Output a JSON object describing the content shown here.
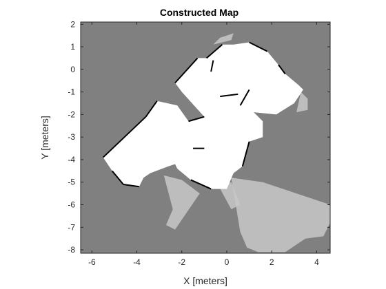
{
  "chart_data": {
    "type": "heatmap",
    "title": "Constructed Map",
    "xlabel": "X [meters]",
    "ylabel": "Y [meters]",
    "xlim": [
      -6.5,
      4.6
    ],
    "ylim": [
      -8.15,
      2.1
    ],
    "xticks": [
      -6,
      -4,
      -2,
      0,
      2,
      4
    ],
    "yticks": [
      -8,
      -7,
      -6,
      -5,
      -4,
      -3,
      -2,
      -1,
      0,
      1,
      2
    ],
    "grid": false,
    "colors": {
      "unknown": "#808080",
      "free": "#ffffff",
      "occupied": "#000000",
      "partial": "#c8c8c8",
      "axis": "#262626"
    },
    "free_regions": [
      [
        [
          -5.5,
          -3.9
        ],
        [
          -3.6,
          -2.1
        ],
        [
          -3.1,
          -1.4
        ],
        [
          -2.2,
          -1.6
        ],
        [
          -1.7,
          -2.3
        ],
        [
          -1.0,
          -2.1
        ],
        [
          -2.0,
          -1.0
        ],
        [
          -2.3,
          -0.6
        ],
        [
          -1.3,
          0.5
        ],
        [
          -0.9,
          0.5
        ],
        [
          -0.2,
          1.1
        ],
        [
          0.3,
          1.1
        ],
        [
          1.0,
          1.2
        ],
        [
          1.8,
          0.8
        ],
        [
          2.3,
          0.2
        ],
        [
          2.6,
          -0.2
        ],
        [
          3.2,
          -0.7
        ],
        [
          3.4,
          -0.9
        ],
        [
          3.0,
          -1.5
        ],
        [
          2.2,
          -2.0
        ],
        [
          1.2,
          -1.9
        ],
        [
          1.6,
          -2.3
        ],
        [
          1.6,
          -3.0
        ],
        [
          1.0,
          -3.2
        ],
        [
          0.7,
          -4.3
        ],
        [
          0.3,
          -4.6
        ],
        [
          0.0,
          -5.3
        ],
        [
          -0.7,
          -5.3
        ],
        [
          -1.6,
          -4.9
        ],
        [
          -2.2,
          -4.4
        ],
        [
          -2.3,
          -4.2
        ],
        [
          -2.6,
          -4.3
        ],
        [
          -3.4,
          -4.6
        ],
        [
          -3.7,
          -4.8
        ],
        [
          -3.9,
          -5.2
        ],
        [
          -4.6,
          -5.1
        ],
        [
          -5.1,
          -4.5
        ]
      ],
      [
        [
          -1.2,
          -2.3
        ],
        [
          -0.5,
          -2.3
        ],
        [
          -0.4,
          -3.0
        ],
        [
          -1.2,
          -3.3
        ]
      ]
    ],
    "partial_regions": [
      [
        [
          -2.8,
          -4.7
        ],
        [
          -2.0,
          -4.9
        ],
        [
          -1.2,
          -5.5
        ],
        [
          -2.3,
          -7.1
        ],
        [
          -2.7,
          -6.9
        ],
        [
          -2.4,
          -6.2
        ]
      ],
      [
        [
          0.2,
          -4.8
        ],
        [
          1.6,
          -5.0
        ],
        [
          4.6,
          -6.0
        ],
        [
          4.6,
          -6.8
        ],
        [
          4.3,
          -7.4
        ],
        [
          3.5,
          -7.5
        ],
        [
          2.6,
          -8.1
        ],
        [
          1.4,
          -8.1
        ],
        [
          0.9,
          -7.9
        ],
        [
          0.6,
          -7.2
        ]
      ],
      [
        [
          -0.4,
          -5.1
        ],
        [
          0.2,
          -5.0
        ],
        [
          0.6,
          -6.0
        ],
        [
          0.2,
          -6.2
        ]
      ],
      [
        [
          3.3,
          -1.0
        ],
        [
          3.6,
          -1.3
        ],
        [
          3.6,
          -1.8
        ],
        [
          3.1,
          -1.9
        ]
      ],
      [
        [
          -0.6,
          1.1
        ],
        [
          0.2,
          1.3
        ],
        [
          0.3,
          1.6
        ],
        [
          -0.3,
          1.4
        ]
      ],
      [
        [
          -3.0,
          -2.2
        ],
        [
          -2.7,
          -1.9
        ],
        [
          -2.4,
          -2.6
        ],
        [
          -2.8,
          -2.8
        ]
      ]
    ],
    "occupied_segments": [
      [
        [
          -5.5,
          -3.9
        ],
        [
          -3.6,
          -2.1
        ]
      ],
      [
        [
          -3.6,
          -2.1
        ],
        [
          -3.1,
          -1.4
        ]
      ],
      [
        [
          -2.3,
          -0.6
        ],
        [
          -1.3,
          0.5
        ]
      ],
      [
        [
          -0.9,
          0.5
        ],
        [
          -0.2,
          1.1
        ]
      ],
      [
        [
          1.0,
          1.2
        ],
        [
          1.8,
          0.8
        ]
      ],
      [
        [
          2.3,
          0.2
        ],
        [
          2.6,
          -0.2
        ]
      ],
      [
        [
          -1.7,
          -2.3
        ],
        [
          -1.0,
          -2.1
        ]
      ],
      [
        [
          -0.3,
          -1.2
        ],
        [
          0.5,
          -1.1
        ]
      ],
      [
        [
          -0.7,
          -0.1
        ],
        [
          -0.6,
          0.4
        ]
      ],
      [
        [
          0.6,
          -1.6
        ],
        [
          1.0,
          -0.9
        ]
      ],
      [
        [
          1.0,
          -3.2
        ],
        [
          0.7,
          -4.3
        ]
      ],
      [
        [
          -3.9,
          -5.2
        ],
        [
          -4.6,
          -5.1
        ]
      ],
      [
        [
          -4.6,
          -5.1
        ],
        [
          -5.1,
          -4.5
        ]
      ],
      [
        [
          -1.6,
          -4.9
        ],
        [
          -0.7,
          -5.3
        ]
      ],
      [
        [
          -1.5,
          -3.5
        ],
        [
          -1.0,
          -3.5
        ]
      ]
    ]
  }
}
